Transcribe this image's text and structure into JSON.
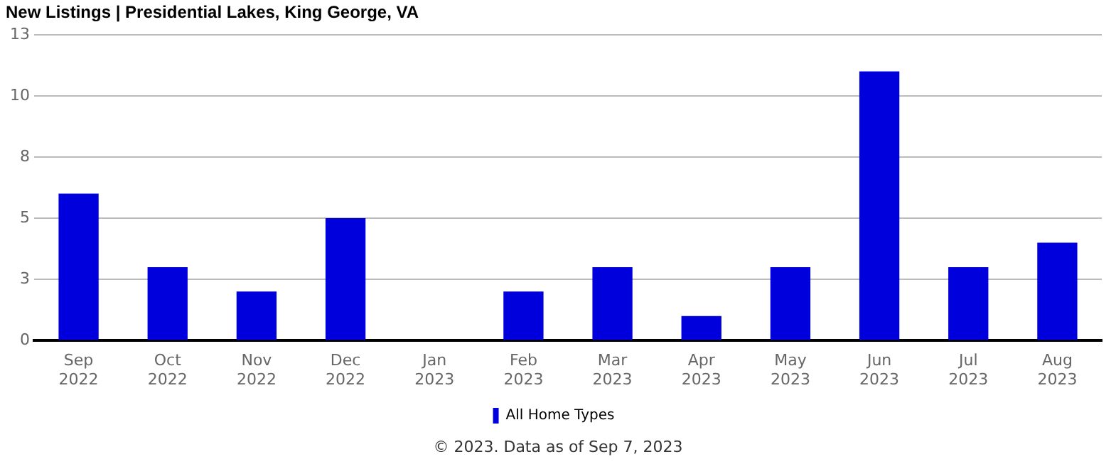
{
  "chart_data": {
    "type": "bar",
    "title": "New Listings | Presidential Lakes, King George, VA",
    "categories": [
      "Sep 2022",
      "Oct 2022",
      "Nov 2022",
      "Dec 2022",
      "Jan 2023",
      "Feb 2023",
      "Mar 2023",
      "Apr 2023",
      "May 2023",
      "Jun 2023",
      "Jul 2023",
      "Aug 2023"
    ],
    "series": [
      {
        "name": "All Home Types",
        "color": "#0000dd",
        "values": [
          6,
          3,
          2,
          5,
          0,
          2,
          3,
          1,
          3,
          11,
          3,
          4
        ]
      }
    ],
    "ylim": [
      0,
      12.5
    ],
    "yticks": [
      0,
      {
        "value": 2.5,
        "label": "3"
      },
      5,
      {
        "value": 7.5,
        "label": "8"
      },
      10,
      {
        "value": 12.5,
        "label": "13"
      }
    ],
    "grid": "y",
    "legend": "bottom",
    "annotations": [
      "© 2023. Data as of Sep 7, 2023"
    ]
  }
}
